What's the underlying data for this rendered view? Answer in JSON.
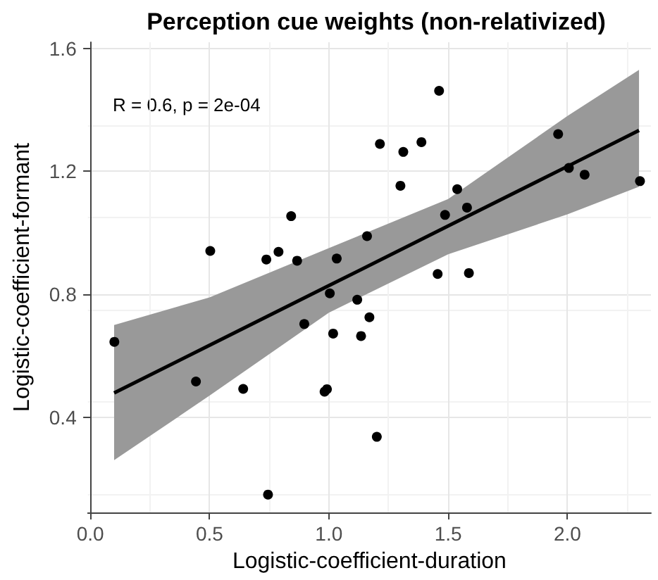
{
  "chart_data": {
    "type": "scatter",
    "title": "Perception cue weights (non-relativized)",
    "xlabel": "Logistic-coefficient-duration",
    "ylabel": "Logistic-coefficient-formant",
    "annotations": [
      "R = 0.6, p = 2e-04"
    ],
    "series": [
      {
        "color": "#000000",
        "marker": "circle",
        "x": [
          0.503,
          0.842,
          0.738,
          0.789,
          0.867,
          1.033,
          1.004,
          1.119,
          1.462,
          1.214,
          1.312,
          1.388,
          1.3,
          1.961,
          2.006,
          2.072,
          1.538,
          1.579,
          1.487,
          1.16,
          1.456,
          1.587,
          1.17,
          0.101,
          0.443,
          0.641,
          0.897,
          0.982,
          0.992,
          1.018,
          0.745,
          1.135,
          1.201,
          2.304
        ],
        "values": [
          0.941,
          1.054,
          0.913,
          0.938,
          0.909,
          0.916,
          0.803,
          0.782,
          1.462,
          1.289,
          1.263,
          1.295,
          1.153,
          1.321,
          1.211,
          1.189,
          1.142,
          1.082,
          1.058,
          0.989,
          0.866,
          0.869,
          0.725,
          0.645,
          0.516,
          0.492,
          0.703,
          0.483,
          0.491,
          0.672,
          0.148,
          0.664,
          0.336,
          1.168
        ]
      },
      {
        "type": "line",
        "color": "#000000",
        "marker": "none",
        "x": [
          0.1,
          0.5,
          1.0,
          1.5,
          2.0,
          2.3
        ],
        "values": [
          0.479,
          0.634,
          0.828,
          1.022,
          1.216,
          1.333
        ],
        "lower": [
          0.26,
          0.47,
          0.74,
          0.93,
          1.06,
          1.15
        ],
        "upper": [
          0.7,
          0.79,
          0.95,
          1.11,
          1.38,
          1.53
        ]
      }
    ],
    "xlim": [
      -0.01,
      2.35
    ],
    "ylim": [
      0.09,
      1.62
    ],
    "xticks": [
      {
        "value": 0,
        "label": "0.0"
      },
      {
        "value": 0.5,
        "label": "0.5"
      },
      {
        "value": 1,
        "label": "1.0"
      },
      {
        "value": 1.5,
        "label": "1.5"
      },
      {
        "value": 2,
        "label": "2.0"
      }
    ],
    "yticks": [
      {
        "value": 0.4,
        "label": "0.4"
      },
      {
        "value": 0.8,
        "label": "0.8"
      },
      {
        "value": 1.2,
        "label": "1.2"
      },
      {
        "value": 1.6,
        "label": "1.6"
      }
    ],
    "grid": true
  }
}
